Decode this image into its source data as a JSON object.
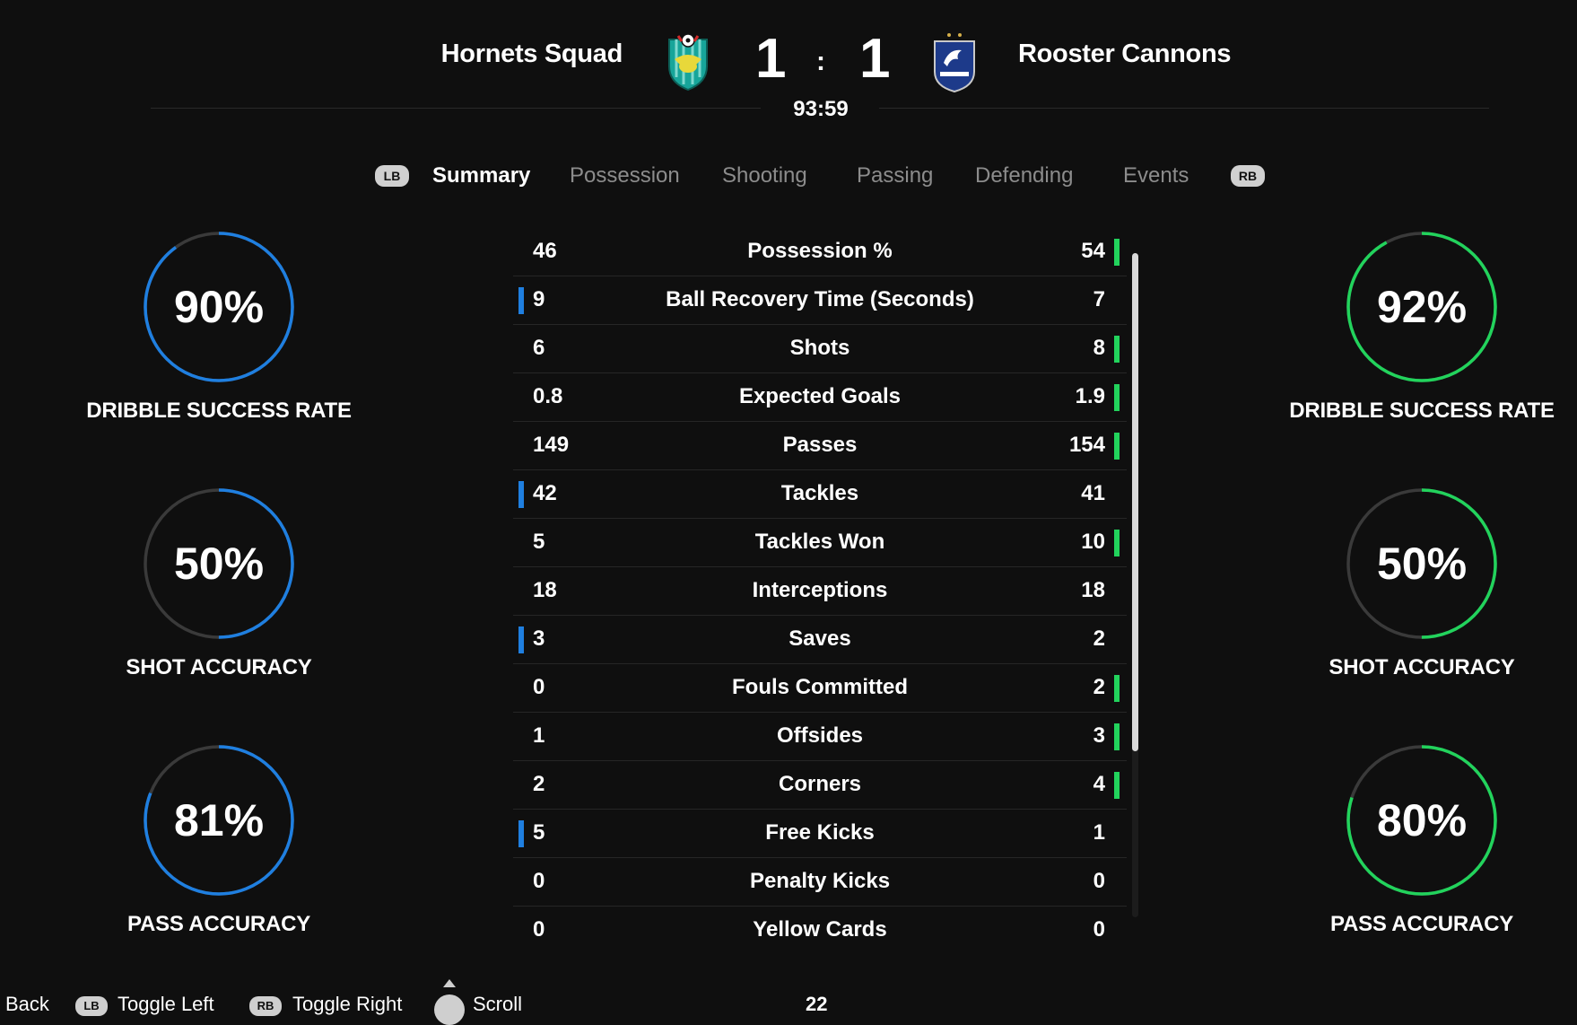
{
  "match": {
    "home_team": "Hornets Squad",
    "away_team": "Rooster Cannons",
    "home_score": "1",
    "away_score": "1",
    "separator": ":",
    "clock": "93:59"
  },
  "tabs": {
    "left_bumper": "LB",
    "right_bumper": "RB",
    "items": [
      {
        "label": "Summary",
        "active": true
      },
      {
        "label": "Possession",
        "active": false
      },
      {
        "label": "Shooting",
        "active": false
      },
      {
        "label": "Passing",
        "active": false
      },
      {
        "label": "Defending",
        "active": false
      },
      {
        "label": "Events",
        "active": false
      }
    ]
  },
  "home_rings": [
    {
      "value": "90%",
      "label": "DRIBBLE SUCCESS RATE",
      "percent": 90
    },
    {
      "value": "50%",
      "label": "SHOT ACCURACY",
      "percent": 50
    },
    {
      "value": "81%",
      "label": "PASS ACCURACY",
      "percent": 81
    }
  ],
  "away_rings": [
    {
      "value": "92%",
      "label": "DRIBBLE SUCCESS RATE",
      "percent": 92
    },
    {
      "value": "50%",
      "label": "SHOT ACCURACY",
      "percent": 50
    },
    {
      "value": "80%",
      "label": "PASS ACCURACY",
      "percent": 80
    }
  ],
  "colors": {
    "home_accent": "#1f7fe0",
    "away_accent": "#22d35c",
    "ring_track": "#3a3a3a"
  },
  "stats": [
    {
      "label": "Possession %",
      "home": "46",
      "away": "54",
      "leader": "away"
    },
    {
      "label": "Ball Recovery Time (Seconds)",
      "home": "9",
      "away": "7",
      "leader": "home"
    },
    {
      "label": "Shots",
      "home": "6",
      "away": "8",
      "leader": "away"
    },
    {
      "label": "Expected Goals",
      "home": "0.8",
      "away": "1.9",
      "leader": "away"
    },
    {
      "label": "Passes",
      "home": "149",
      "away": "154",
      "leader": "away"
    },
    {
      "label": "Tackles",
      "home": "42",
      "away": "41",
      "leader": "home"
    },
    {
      "label": "Tackles Won",
      "home": "5",
      "away": "10",
      "leader": "away"
    },
    {
      "label": "Interceptions",
      "home": "18",
      "away": "18",
      "leader": "none"
    },
    {
      "label": "Saves",
      "home": "3",
      "away": "2",
      "leader": "home"
    },
    {
      "label": "Fouls Committed",
      "home": "0",
      "away": "2",
      "leader": "away"
    },
    {
      "label": "Offsides",
      "home": "1",
      "away": "3",
      "leader": "away"
    },
    {
      "label": "Corners",
      "home": "2",
      "away": "4",
      "leader": "away"
    },
    {
      "label": "Free Kicks",
      "home": "5",
      "away": "1",
      "leader": "home"
    },
    {
      "label": "Penalty Kicks",
      "home": "0",
      "away": "0",
      "leader": "none"
    },
    {
      "label": "Yellow Cards",
      "home": "0",
      "away": "0",
      "leader": "none"
    }
  ],
  "footer": {
    "back": "Back",
    "toggle_left_badge": "LB",
    "toggle_left": "Toggle Left",
    "toggle_right_badge": "RB",
    "toggle_right": "Toggle Right",
    "scroll": "Scroll",
    "page": "22"
  }
}
